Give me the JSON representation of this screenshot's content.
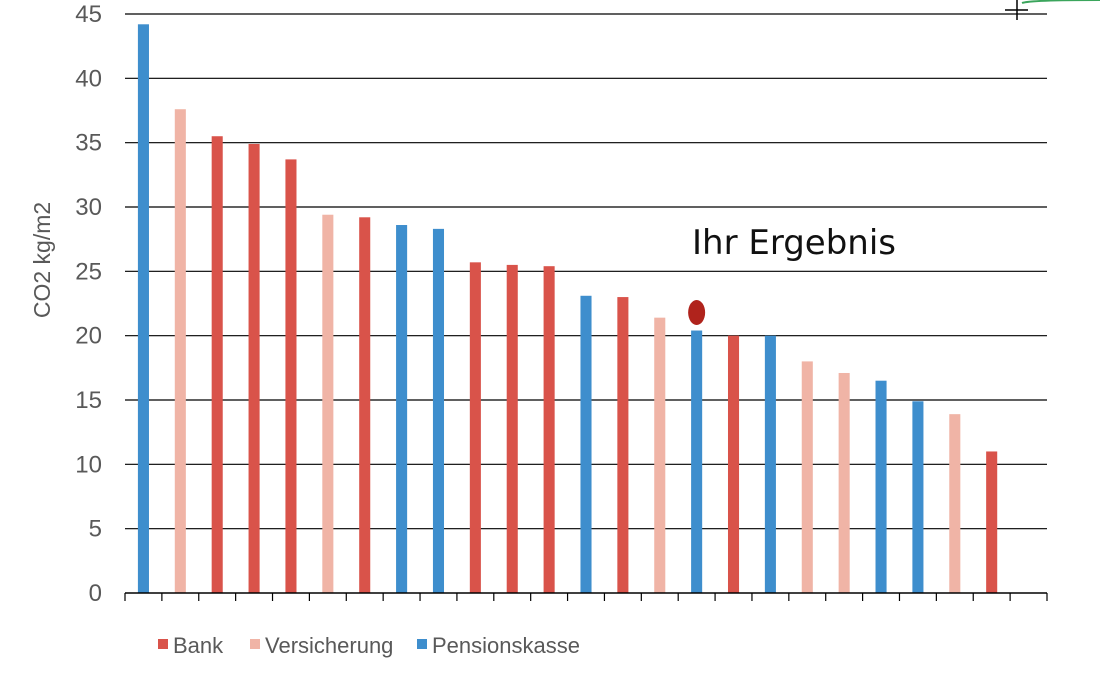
{
  "chart_data": {
    "type": "bar",
    "title": "",
    "xlabel": "",
    "ylabel": "CO2 kg/m2",
    "ylim": [
      0,
      45
    ],
    "yticks": [
      0,
      5,
      10,
      15,
      20,
      25,
      30,
      35,
      40,
      45
    ],
    "grid": true,
    "legend_position": "bottom-left",
    "series": [
      {
        "name": "Bank",
        "color": "#D9534A"
      },
      {
        "name": "Versicherung",
        "color": "#F0B4A6"
      },
      {
        "name": "Pensionskasse",
        "color": "#3E8ECD"
      }
    ],
    "bars": [
      {
        "series": "Pensionskasse",
        "value": 44.2
      },
      {
        "series": "Versicherung",
        "value": 37.6
      },
      {
        "series": "Bank",
        "value": 35.5
      },
      {
        "series": "Bank",
        "value": 34.9
      },
      {
        "series": "Bank",
        "value": 33.7
      },
      {
        "series": "Versicherung",
        "value": 29.4
      },
      {
        "series": "Bank",
        "value": 29.2
      },
      {
        "series": "Pensionskasse",
        "value": 28.6
      },
      {
        "series": "Pensionskasse",
        "value": 28.3
      },
      {
        "series": "Bank",
        "value": 25.7
      },
      {
        "series": "Bank",
        "value": 25.5
      },
      {
        "series": "Bank",
        "value": 25.4
      },
      {
        "series": "Pensionskasse",
        "value": 23.1
      },
      {
        "series": "Bank",
        "value": 23.0
      },
      {
        "series": "Versicherung",
        "value": 21.4
      },
      {
        "series": "Pensionskasse",
        "value": 20.4
      },
      {
        "series": "Bank",
        "value": 20.0
      },
      {
        "series": "Pensionskasse",
        "value": 20.0
      },
      {
        "series": "Versicherung",
        "value": 18.0
      },
      {
        "series": "Versicherung",
        "value": 17.1
      },
      {
        "series": "Pensionskasse",
        "value": 16.5
      },
      {
        "series": "Pensionskasse",
        "value": 14.9
      },
      {
        "series": "Versicherung",
        "value": 13.9
      },
      {
        "series": "Bank",
        "value": 11.0
      },
      {
        "series": "",
        "value": 0
      }
    ],
    "annotation": {
      "text": "Ihr Ergebnis",
      "marker_value": 21.8,
      "marker_bar_index": 15,
      "marker_color": "#B0231C"
    }
  }
}
